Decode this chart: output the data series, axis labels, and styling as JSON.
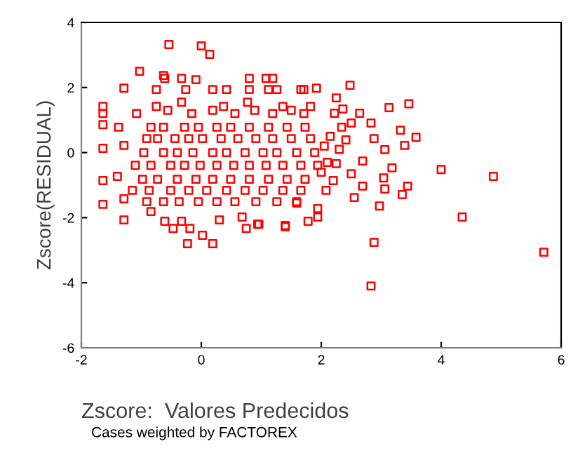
{
  "chart_data": {
    "type": "scatter",
    "xlabel": "Zscore:  Valores Predecidos",
    "ylabel": "Zscore(RESIDUAL)",
    "annotations": [
      "Cases weighted by FACTOREX"
    ],
    "marker": "square",
    "grid": false,
    "legend": false,
    "xlim": [
      -2,
      6
    ],
    "ylim": [
      -6,
      4
    ],
    "xticks": [
      -2,
      0,
      2,
      4,
      6
    ],
    "yticks": [
      -6,
      -4,
      -2,
      0,
      2,
      4
    ],
    "series": [
      {
        "color": "#ff0000",
        "x": [
          5.71,
          4.35,
          4.87,
          4.0,
          2.83,
          2.88,
          3.58,
          3.46,
          3.13,
          3.32,
          3.39,
          3.44,
          3.35,
          3.18,
          3.04,
          3.06,
          2.97,
          2.55,
          2.48,
          2.64,
          2.83,
          2.88,
          3.06,
          2.69,
          2.5,
          2.69,
          2.25,
          2.36,
          2.5,
          2.34,
          2.22,
          2.41,
          2.25,
          2.2,
          2.08,
          1.94,
          1.94,
          1.78,
          1.59,
          1.4,
          1.92,
          1.71,
          -0.54,
          0.0,
          0.14,
          -1.03,
          -0.63,
          -0.09,
          -1.29,
          -1.64,
          -1.64,
          -1.64,
          -1.64,
          -1.64,
          -1.64,
          -1.29,
          -1.4,
          -1.29,
          -1.29,
          -0.84,
          -0.61,
          -0.33,
          0.3,
          0.68,
          0.96,
          -0.23,
          0.19,
          0.02,
          -0.19,
          -0.47,
          1.4,
          0.75,
          0.94,
          -1.08,
          -0.75,
          -0.56,
          -0.33,
          -0.16,
          0.19,
          0.37,
          0.56,
          0.77,
          0.89,
          1.19,
          1.36,
          1.5,
          1.71,
          1.82,
          -1.38,
          -0.84,
          -0.63,
          -0.28,
          -0.05,
          0.26,
          0.49,
          0.8,
          1.12,
          1.43,
          1.73,
          -0.91,
          -0.73,
          -0.44,
          -0.21,
          0.02,
          0.33,
          0.61,
          0.91,
          1.19,
          1.5,
          1.82,
          -0.96,
          -0.63,
          -0.4,
          -0.14,
          0.19,
          0.42,
          0.73,
          1.03,
          1.26,
          1.59,
          1.89,
          -1.1,
          -0.84,
          -0.51,
          -0.28,
          -0.02,
          0.26,
          0.54,
          0.8,
          1.08,
          1.36,
          1.66,
          1.94,
          -0.98,
          -0.73,
          -0.4,
          -0.09,
          0.19,
          0.49,
          0.8,
          1.12,
          1.43,
          1.73,
          -1.15,
          -0.87,
          -0.51,
          -0.21,
          0.09,
          0.42,
          0.73,
          1.03,
          1.36,
          1.66,
          -0.91,
          -0.63,
          -0.37,
          -0.05,
          0.26,
          0.56,
          0.91,
          1.26,
          1.59,
          -0.75,
          -0.26,
          0.19,
          0.42,
          0.8,
          1.12,
          1.26,
          1.66,
          -0.61,
          -0.33,
          0.8,
          1.08,
          1.19,
          2.05,
          2.1,
          2.15,
          2.0,
          2.3
        ],
        "values": [
          -3.06,
          -1.98,
          -0.73,
          -0.52,
          -4.1,
          -2.76,
          0.47,
          1.5,
          1.38,
          0.69,
          0.22,
          -1.03,
          -1.29,
          -0.47,
          -0.78,
          -1.12,
          -1.64,
          -1.38,
          2.07,
          1.21,
          0.91,
          0.43,
          0.09,
          -0.26,
          -0.65,
          -1.03,
          1.68,
          1.34,
          0.91,
          0.78,
          1.21,
          0.39,
          -0.34,
          -0.86,
          -1.16,
          -1.72,
          -1.98,
          -2.11,
          -1.55,
          -2.28,
          1.98,
          1.94,
          3.32,
          3.28,
          3.02,
          2.5,
          2.37,
          2.24,
          1.98,
          1.42,
          1.2,
          0.86,
          0.13,
          -0.86,
          -1.59,
          0.22,
          -0.73,
          -1.42,
          -2.07,
          -1.81,
          -2.11,
          -2.11,
          -2.07,
          -1.98,
          -2.2,
          -2.8,
          -2.8,
          -2.54,
          -2.33,
          -2.33,
          -2.24,
          -2.33,
          -2.2,
          1.2,
          1.42,
          1.3,
          1.55,
          1.2,
          1.3,
          1.42,
          1.2,
          1.55,
          1.3,
          1.2,
          1.42,
          1.3,
          1.2,
          1.42,
          0.78,
          0.78,
          0.78,
          0.78,
          0.78,
          0.78,
          0.78,
          0.78,
          0.78,
          0.78,
          0.78,
          0.43,
          0.43,
          0.43,
          0.43,
          0.43,
          0.43,
          0.43,
          0.43,
          0.43,
          0.43,
          0.43,
          0.0,
          0.0,
          0.0,
          0.0,
          0.0,
          0.0,
          0.0,
          0.0,
          0.0,
          0.0,
          0.0,
          -0.39,
          -0.39,
          -0.39,
          -0.39,
          -0.39,
          -0.39,
          -0.39,
          -0.39,
          -0.39,
          -0.39,
          -0.39,
          -0.39,
          -0.82,
          -0.82,
          -0.82,
          -0.82,
          -0.82,
          -0.82,
          -0.82,
          -0.82,
          -0.82,
          -0.82,
          -1.16,
          -1.16,
          -1.16,
          -1.16,
          -1.16,
          -1.16,
          -1.16,
          -1.16,
          -1.16,
          -1.16,
          -1.51,
          -1.51,
          -1.51,
          -1.51,
          -1.51,
          -1.51,
          -1.51,
          -1.51,
          -1.51,
          1.94,
          1.94,
          1.94,
          1.94,
          1.94,
          1.94,
          1.94,
          1.94,
          2.28,
          2.28,
          2.28,
          2.28,
          2.28,
          0.2,
          -0.3,
          0.5,
          -0.6,
          0.1
        ]
      }
    ]
  }
}
